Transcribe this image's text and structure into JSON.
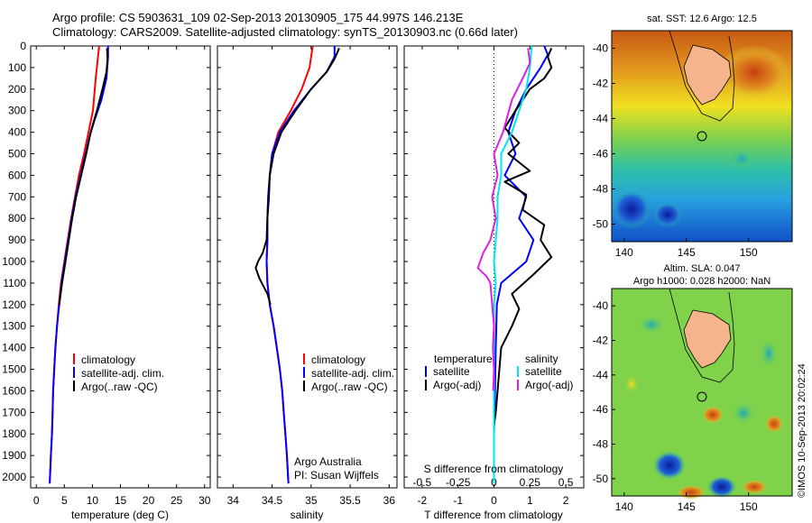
{
  "header": {
    "line1": "Argo profile: CS 5903631_109 02-Sep-2013 20130905_175 44.997S 146.213E",
    "line2": "Climatology: CARS2009. Satellite-adjusted climatology: synTS_20130903.nc (0.66d later)"
  },
  "colors": {
    "climatology": "#ff0000",
    "satellite": "#0000ff",
    "argo": "#000000",
    "satellite_s": "#00e5ee",
    "argo_s": "#e020e0"
  },
  "chart_data": [
    {
      "type": "line",
      "panel": "temperature",
      "xlabel": "temperature (deg C)",
      "xlim": [
        -1,
        31
      ],
      "xticks": [
        0,
        5,
        10,
        15,
        20,
        25,
        30
      ],
      "ylim": [
        0,
        2050
      ],
      "yticks": [
        0,
        100,
        200,
        300,
        400,
        500,
        600,
        700,
        800,
        900,
        1000,
        1100,
        1200,
        1300,
        1400,
        1500,
        1600,
        1700,
        1800,
        1900,
        2000
      ],
      "legend": [
        "climatology",
        "satellite-adj. clim.",
        "Argo(..raw -QC)"
      ],
      "series": [
        {
          "name": "climatology",
          "color": "climatology",
          "points": [
            [
              11.2,
              0
            ],
            [
              11.0,
              50
            ],
            [
              10.6,
              150
            ],
            [
              10.1,
              300
            ],
            [
              9.3,
              400
            ],
            [
              8.5,
              500
            ],
            [
              7.6,
              600
            ],
            [
              6.9,
              700
            ],
            [
              6.2,
              800
            ],
            [
              5.6,
              900
            ],
            [
              5.0,
              1000
            ],
            [
              4.4,
              1100
            ],
            [
              4.0,
              1200
            ],
            [
              3.7,
              1300
            ],
            [
              3.4,
              1400
            ],
            [
              3.2,
              1500
            ],
            [
              3.0,
              1600
            ],
            [
              2.9,
              1700
            ],
            [
              2.8,
              1800
            ],
            [
              2.6,
              1900
            ],
            [
              2.4,
              2030
            ]
          ]
        },
        {
          "name": "satellite-adj. clim.",
          "color": "satellite",
          "points": [
            [
              12.8,
              0
            ],
            [
              12.8,
              50
            ],
            [
              12.5,
              150
            ],
            [
              11.6,
              250
            ],
            [
              10.3,
              350
            ],
            [
              9.5,
              420
            ],
            [
              8.8,
              500
            ],
            [
              7.9,
              600
            ],
            [
              7.0,
              700
            ],
            [
              6.3,
              800
            ],
            [
              5.7,
              900
            ],
            [
              5.1,
              1000
            ],
            [
              4.5,
              1100
            ],
            [
              4.1,
              1200
            ],
            [
              3.7,
              1300
            ],
            [
              3.4,
              1400
            ],
            [
              3.2,
              1500
            ],
            [
              3.0,
              1600
            ],
            [
              2.9,
              1700
            ],
            [
              2.8,
              1800
            ],
            [
              2.6,
              1900
            ],
            [
              2.4,
              2030
            ]
          ]
        },
        {
          "name": "Argo(..raw -QC)",
          "color": "argo",
          "points": [
            [
              12.6,
              10
            ],
            [
              12.7,
              60
            ],
            [
              12.5,
              120
            ],
            [
              11.8,
              200
            ],
            [
              10.8,
              300
            ],
            [
              9.7,
              400
            ],
            [
              8.9,
              500
            ],
            [
              8.0,
              600
            ],
            [
              7.1,
              700
            ],
            [
              6.4,
              800
            ],
            [
              5.8,
              900
            ],
            [
              5.2,
              1000
            ],
            [
              4.6,
              1100
            ],
            [
              4.1,
              1200
            ]
          ]
        }
      ]
    },
    {
      "type": "line",
      "panel": "salinity",
      "xlabel": "salinity",
      "xlim": [
        33.8,
        36.1
      ],
      "xticks": [
        34,
        34.5,
        35,
        35.5,
        36
      ],
      "ylim": [
        0,
        2050
      ],
      "legend": [
        "climatology",
        "satellite-adj. clim.",
        "Argo(..raw -QC)"
      ],
      "annotation": [
        "Argo Australia",
        "PI: Susan Wijffels"
      ],
      "series": [
        {
          "name": "climatology",
          "color": "climatology",
          "points": [
            [
              35.02,
              0
            ],
            [
              34.98,
              100
            ],
            [
              34.88,
              200
            ],
            [
              34.74,
              300
            ],
            [
              34.58,
              400
            ],
            [
              34.5,
              500
            ],
            [
              34.47,
              600
            ],
            [
              34.45,
              700
            ],
            [
              34.44,
              800
            ],
            [
              34.44,
              900
            ],
            [
              34.43,
              1000
            ],
            [
              34.44,
              1100
            ],
            [
              34.47,
              1200
            ],
            [
              34.52,
              1300
            ],
            [
              34.56,
              1400
            ],
            [
              34.6,
              1500
            ],
            [
              34.63,
              1600
            ],
            [
              34.65,
              1700
            ],
            [
              34.67,
              1800
            ],
            [
              34.69,
              1900
            ],
            [
              34.71,
              2030
            ]
          ]
        },
        {
          "name": "satellite-adj. clim.",
          "color": "satellite",
          "points": [
            [
              35.3,
              0
            ],
            [
              35.3,
              50
            ],
            [
              35.2,
              120
            ],
            [
              35.0,
              200
            ],
            [
              34.78,
              300
            ],
            [
              34.6,
              400
            ],
            [
              34.5,
              500
            ],
            [
              34.47,
              600
            ],
            [
              34.45,
              700
            ],
            [
              34.44,
              800
            ],
            [
              34.44,
              900
            ],
            [
              34.43,
              1000
            ],
            [
              34.44,
              1100
            ],
            [
              34.47,
              1200
            ],
            [
              34.52,
              1300
            ],
            [
              34.56,
              1400
            ],
            [
              34.6,
              1500
            ],
            [
              34.63,
              1600
            ],
            [
              34.65,
              1700
            ],
            [
              34.67,
              1800
            ],
            [
              34.69,
              1900
            ],
            [
              34.71,
              2030
            ]
          ]
        },
        {
          "name": "Argo(..raw -QC)",
          "color": "argo",
          "points": [
            [
              35.36,
              10
            ],
            [
              35.3,
              60
            ],
            [
              35.2,
              120
            ],
            [
              35.0,
              200
            ],
            [
              34.8,
              300
            ],
            [
              34.62,
              400
            ],
            [
              34.52,
              500
            ],
            [
              34.47,
              600
            ],
            [
              34.46,
              700
            ],
            [
              34.44,
              800
            ],
            [
              34.43,
              900
            ],
            [
              34.38,
              960
            ],
            [
              34.32,
              1000
            ],
            [
              34.29,
              1030
            ],
            [
              34.34,
              1080
            ],
            [
              34.44,
              1150
            ],
            [
              34.48,
              1200
            ]
          ]
        }
      ]
    },
    {
      "type": "line",
      "panel": "difference",
      "xlabel": "T difference from climatology",
      "xlabel_top": "S difference from climatology",
      "xlim": [
        -2.5,
        2.5
      ],
      "xticks": [
        -2,
        -1,
        0,
        1,
        2
      ],
      "xticks_top": [
        "-0.5",
        "-0.25",
        "0",
        "0.25",
        "0.5"
      ],
      "ylim": [
        0,
        2050
      ],
      "legend_temperature": {
        "title": "temperature",
        "items": [
          "satellite",
          "Argo(-adj)"
        ]
      },
      "legend_salinity": {
        "title": "salinity",
        "items": [
          "satellite",
          "Argo(-adj)"
        ]
      },
      "series": [
        {
          "name": "satellite",
          "color": "satellite",
          "points": [
            [
              1.4,
              0
            ],
            [
              1.5,
              40
            ],
            [
              1.3,
              100
            ],
            [
              0.9,
              200
            ],
            [
              0.6,
              300
            ],
            [
              0.4,
              400
            ],
            [
              0.6,
              500
            ],
            [
              0.3,
              600
            ],
            [
              0.9,
              700
            ],
            [
              0.7,
              800
            ],
            [
              1.1,
              900
            ],
            [
              0.9,
              1000
            ],
            [
              0.2,
              1100
            ],
            [
              0.08,
              1200
            ],
            [
              0.05,
              1400
            ],
            [
              0.03,
              1600
            ],
            [
              0.0,
              1800
            ],
            [
              0.0,
              2030
            ]
          ]
        },
        {
          "name": "Argo(-adj)",
          "color": "argo",
          "points": [
            [
              1.6,
              10
            ],
            [
              1.5,
              50
            ],
            [
              1.6,
              100
            ],
            [
              1.4,
              150
            ],
            [
              1.0,
              200
            ],
            [
              0.6,
              300
            ],
            [
              0.3,
              380
            ],
            [
              0.7,
              450
            ],
            [
              0.4,
              500
            ],
            [
              1.0,
              580
            ],
            [
              0.3,
              630
            ],
            [
              0.9,
              690
            ],
            [
              0.8,
              760
            ],
            [
              1.4,
              830
            ],
            [
              1.3,
              900
            ],
            [
              1.6,
              980
            ],
            [
              1.1,
              1060
            ],
            [
              0.5,
              1150
            ],
            [
              0.7,
              1220
            ],
            [
              0.5,
              1300
            ],
            [
              0.2,
              1400
            ],
            [
              0.15,
              1500
            ],
            [
              0.1,
              1600
            ],
            [
              0.05,
              1700
            ],
            [
              0.0,
              1760
            ]
          ]
        },
        {
          "name": "satellite",
          "color": "satellite_s",
          "points": [
            [
              1.05,
              0
            ],
            [
              1.0,
              100
            ],
            [
              0.9,
              200
            ],
            [
              0.7,
              300
            ],
            [
              0.5,
              400
            ],
            [
              0.2,
              500
            ],
            [
              0.2,
              600
            ],
            [
              0.1,
              700
            ],
            [
              0.1,
              800
            ],
            [
              0.05,
              900
            ],
            [
              0.0,
              1000
            ],
            [
              0.05,
              1100
            ],
            [
              0.0,
              1200
            ],
            [
              0.0,
              1400
            ],
            [
              0.0,
              1600
            ],
            [
              0.0,
              1800
            ],
            [
              0.0,
              2030
            ]
          ]
        },
        {
          "name": "Argo(-adj)",
          "color": "argo_s",
          "points": [
            [
              0.95,
              10
            ],
            [
              1.0,
              80
            ],
            [
              0.8,
              150
            ],
            [
              0.5,
              250
            ],
            [
              0.25,
              400
            ],
            [
              0.0,
              500
            ],
            [
              0.1,
              600
            ],
            [
              -0.05,
              700
            ],
            [
              0.05,
              800
            ],
            [
              -0.1,
              900
            ],
            [
              -0.3,
              960
            ],
            [
              -0.45,
              1030
            ],
            [
              -0.2,
              1070
            ],
            [
              -0.1,
              1100
            ],
            [
              -0.05,
              1200
            ],
            [
              0.0,
              1300
            ],
            [
              -0.03,
              1400
            ],
            [
              0.0,
              1500
            ],
            [
              -0.02,
              1600
            ]
          ]
        }
      ]
    }
  ],
  "maps": [
    {
      "title": "sat. SST: 12.6 Argo: 12.5",
      "xticks": [
        "140",
        "145",
        "150"
      ],
      "yticks": [
        "-40",
        "-42",
        "-44",
        "-46",
        "-48",
        "-50"
      ],
      "xlim": [
        139,
        153.5
      ],
      "ylim": [
        -51,
        -39
      ],
      "marker": [
        146.213,
        -44.997
      ]
    },
    {
      "title_line1": "Altim. SLA: 0.047",
      "title_line2": "Argo h1000: 0.028 h2000: NaN",
      "xticks": [
        "140",
        "145",
        "150"
      ],
      "yticks": [
        "-40",
        "-42",
        "-44",
        "-46",
        "-48",
        "-50"
      ],
      "xlim": [
        139,
        153.5
      ],
      "ylim": [
        -51,
        -39
      ],
      "marker": [
        146.213,
        -44.997
      ]
    }
  ],
  "side_label": "©IMOS 10-Sep-2013 20:02:24"
}
